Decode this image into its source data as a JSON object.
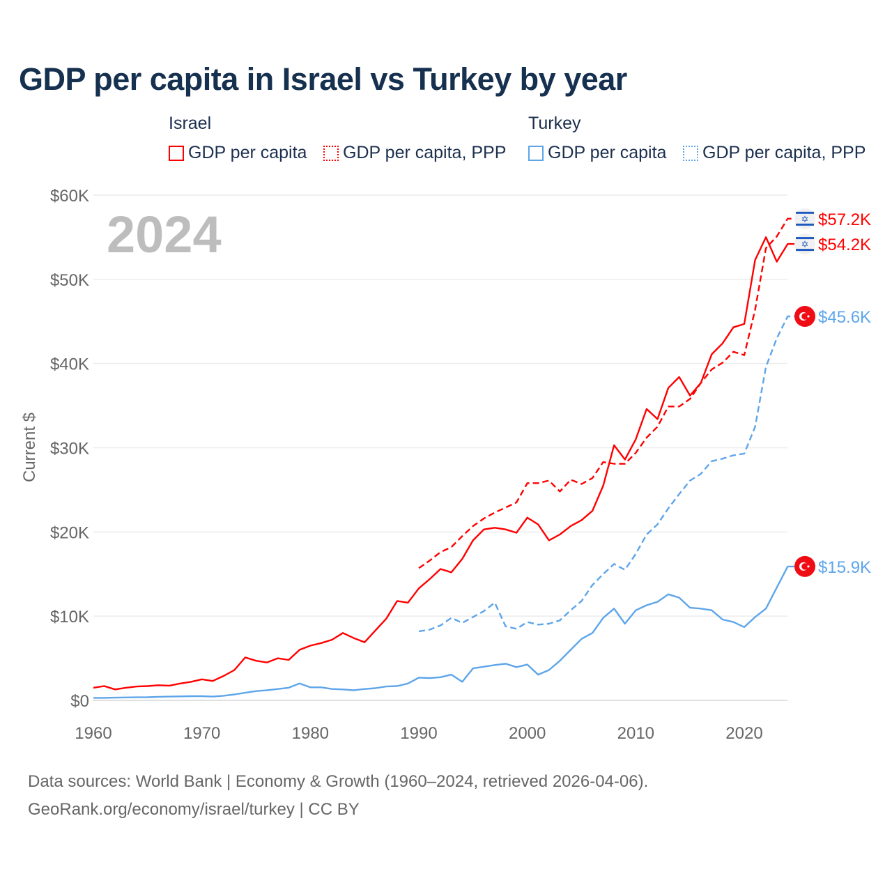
{
  "title": "GDP per capita in Israel vs Turkey by year",
  "watermark_year": "2024",
  "legend": {
    "groups": [
      {
        "name": "Israel",
        "items": [
          "GDP per capita",
          "GDP per capita, PPP"
        ],
        "color": "#ff0000"
      },
      {
        "name": "Turkey",
        "items": [
          "GDP per capita",
          "GDP per capita, PPP"
        ],
        "color": "#5ea5ea"
      }
    ]
  },
  "footer": {
    "line1": "Data sources: World Bank | Economy & Growth (1960–2024, retrieved 2026-04-06).",
    "line2": "GeoRank.org/economy/israel/turkey | CC BY"
  },
  "chart_data": {
    "type": "line",
    "title": "GDP per capita in Israel vs Turkey by year",
    "xlabel": "",
    "ylabel": "Current $",
    "xlim": [
      1960,
      2024
    ],
    "ylim": [
      0,
      60
    ],
    "y_unit": "thousand USD",
    "x_ticks": [
      "1960",
      "1970",
      "1980",
      "1990",
      "2000",
      "2010",
      "2020"
    ],
    "y_ticks": [
      "$0",
      "$10K",
      "$20K",
      "$30K",
      "$40K",
      "$50K",
      "$60K"
    ],
    "grid": true,
    "legend_position": "top",
    "series": [
      {
        "name": "Israel GDP per capita",
        "country": "Israel",
        "color": "#ff0000",
        "dashed": false,
        "end_label": "$54.2K",
        "start_year": 1960,
        "values": [
          1.5,
          1.7,
          1.3,
          1.5,
          1.65,
          1.7,
          1.8,
          1.75,
          2.0,
          2.2,
          2.5,
          2.3,
          2.9,
          3.6,
          5.1,
          4.7,
          4.5,
          5.0,
          4.8,
          6.0,
          6.5,
          6.8,
          7.2,
          8.0,
          7.4,
          6.9,
          8.3,
          9.7,
          11.8,
          11.6,
          13.3,
          14.4,
          15.6,
          15.2,
          16.8,
          19.0,
          20.3,
          20.5,
          20.3,
          19.9,
          21.7,
          20.9,
          19.0,
          19.7,
          20.7,
          21.4,
          22.5,
          25.5,
          30.3,
          28.6,
          31.0,
          34.6,
          33.4,
          37.1,
          38.4,
          36.2,
          37.7,
          41.1,
          42.4,
          44.3,
          44.7,
          52.3,
          55.0,
          52.1,
          54.2
        ]
      },
      {
        "name": "Israel GDP per capita, PPP",
        "country": "Israel",
        "color": "#ff0000",
        "dashed": true,
        "end_label": "$57.2K",
        "start_year": 1990,
        "values": [
          15.7,
          16.6,
          17.6,
          18.2,
          19.5,
          20.7,
          21.6,
          22.3,
          22.9,
          23.5,
          25.8,
          25.8,
          26.1,
          24.8,
          26.2,
          25.7,
          26.4,
          28.3,
          28.1,
          28.1,
          29.4,
          31.2,
          32.5,
          34.9,
          34.9,
          35.8,
          37.7,
          39.3,
          40.1,
          41.4,
          41.0,
          46.4,
          53.7,
          55.1,
          57.2
        ]
      },
      {
        "name": "Turkey GDP per capita",
        "country": "Turkey",
        "color": "#5ea5ea",
        "dashed": false,
        "end_label": "$15.9K",
        "start_year": 1960,
        "values": [
          0.3,
          0.3,
          0.32,
          0.35,
          0.36,
          0.37,
          0.42,
          0.45,
          0.47,
          0.5,
          0.5,
          0.45,
          0.55,
          0.7,
          0.9,
          1.1,
          1.2,
          1.35,
          1.5,
          2.0,
          1.55,
          1.55,
          1.35,
          1.3,
          1.2,
          1.35,
          1.45,
          1.65,
          1.7,
          2.0,
          2.7,
          2.65,
          2.75,
          3.05,
          2.2,
          3.8,
          4.0,
          4.2,
          4.35,
          3.95,
          4.25,
          3.05,
          3.6,
          4.7,
          6.0,
          7.3,
          8.0,
          9.8,
          10.9,
          9.1,
          10.7,
          11.3,
          11.7,
          12.6,
          12.2,
          11.0,
          10.9,
          10.7,
          9.6,
          9.3,
          8.7,
          9.9,
          10.9,
          13.4,
          15.9
        ]
      },
      {
        "name": "Turkey GDP per capita, PPP",
        "country": "Turkey",
        "color": "#5ea5ea",
        "dashed": true,
        "end_label": "$45.6K",
        "start_year": 1990,
        "values": [
          8.2,
          8.4,
          8.9,
          9.8,
          9.2,
          9.9,
          10.6,
          11.6,
          8.8,
          8.5,
          9.3,
          9.0,
          9.1,
          9.5,
          10.7,
          11.8,
          13.7,
          15.0,
          16.2,
          15.5,
          17.4,
          19.7,
          20.9,
          22.8,
          24.5,
          26.1,
          26.9,
          28.4,
          28.7,
          29.1,
          29.3,
          32.5,
          39.6,
          43.0,
          45.6
        ]
      }
    ]
  }
}
